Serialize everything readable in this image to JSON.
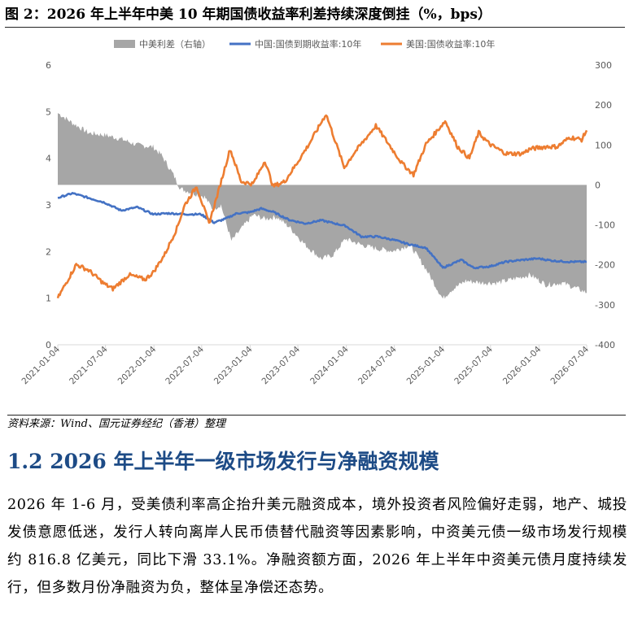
{
  "figure": {
    "title": "图 2：2026 年上半年中美 10 年期国债收益率利差持续深度倒挂（%，bps）",
    "source": "资料来源：Wind、国元证券经纪（香港）整理"
  },
  "section": {
    "heading": "1.2 2026 年上半年一级市场发行与净融资规模",
    "paragraph": "2026 年 1-6 月，受美债利率高企抬升美元融资成本，境外投资者风险偏好走弱，地产、城投发债意愿低迷，发行人转向离岸人民币债替代融资等因素影响，中资美元债一级市场发行规模约 816.8 亿美元，同比下滑 33.1%。净融资额方面，2026 年上半年中资美元债月度持续发行，但多数月份净融资为负，整体呈净偿还态势。"
  },
  "colors": {
    "spread": "#a6a6a6",
    "china": "#4472c4",
    "us": "#ed7d31",
    "axis": "#d9d9d9",
    "tick_text": "#595959"
  },
  "chart_data": {
    "type": "line",
    "x_ticks": [
      "2021-01-04",
      "2021-07-04",
      "2022-01-04",
      "2022-07-04",
      "2023-01-04",
      "2023-07-04",
      "2024-01-04",
      "2024-07-04",
      "2025-01-04",
      "2025-07-04",
      "2026-01-04",
      "2026-07-04"
    ],
    "y_left": {
      "ticks": [
        "0",
        "1",
        "2",
        "3",
        "4",
        "5",
        "6"
      ],
      "range": [
        0,
        6
      ]
    },
    "y_right": {
      "ticks": [
        "-400",
        "-300",
        "-200",
        "-100",
        "0",
        "100",
        "200",
        "300"
      ],
      "range": [
        -400,
        300
      ]
    },
    "legend_position": "top",
    "series": [
      {
        "name": "中美利差（右轴）",
        "kind": "area",
        "axis": "right",
        "points": [
          [
            "2021-01-04",
            180
          ],
          [
            "2021-03-01",
            155
          ],
          [
            "2021-05-01",
            130
          ],
          [
            "2021-07-01",
            125
          ],
          [
            "2021-09-01",
            115
          ],
          [
            "2021-11-01",
            100
          ],
          [
            "2022-01-01",
            95
          ],
          [
            "2022-02-01",
            75
          ],
          [
            "2022-03-15",
            30
          ],
          [
            "2022-04-15",
            -10
          ],
          [
            "2022-06-01",
            -20
          ],
          [
            "2022-07-15",
            -30
          ],
          [
            "2022-08-15",
            -60
          ],
          [
            "2022-09-15",
            -50
          ],
          [
            "2022-10-25",
            -140
          ],
          [
            "2022-12-01",
            -110
          ],
          [
            "2023-01-15",
            -75
          ],
          [
            "2023-03-01",
            -85
          ],
          [
            "2023-04-15",
            -80
          ],
          [
            "2023-06-01",
            -105
          ],
          [
            "2023-08-01",
            -150
          ],
          [
            "2023-10-01",
            -185
          ],
          [
            "2023-11-15",
            -175
          ],
          [
            "2024-01-01",
            -135
          ],
          [
            "2024-03-01",
            -150
          ],
          [
            "2024-05-01",
            -160
          ],
          [
            "2024-07-01",
            -165
          ],
          [
            "2024-09-01",
            -150
          ],
          [
            "2024-11-01",
            -210
          ],
          [
            "2025-01-04",
            -285
          ],
          [
            "2025-02-01",
            -265
          ],
          [
            "2025-04-01",
            -240
          ],
          [
            "2025-06-01",
            -245
          ],
          [
            "2025-08-01",
            -245
          ],
          [
            "2025-10-01",
            -235
          ],
          [
            "2025-12-01",
            -225
          ],
          [
            "2026-02-01",
            -250
          ],
          [
            "2026-04-01",
            -245
          ],
          [
            "2026-06-01",
            -260
          ],
          [
            "2026-07-04",
            -270
          ]
        ]
      },
      {
        "name": "中国:国债到期收益率:10年",
        "kind": "line",
        "axis": "left",
        "points": [
          [
            "2021-01-04",
            3.15
          ],
          [
            "2021-03-01",
            3.25
          ],
          [
            "2021-05-01",
            3.15
          ],
          [
            "2021-07-01",
            3.05
          ],
          [
            "2021-09-01",
            2.88
          ],
          [
            "2021-11-01",
            2.95
          ],
          [
            "2022-01-01",
            2.8
          ],
          [
            "2022-03-01",
            2.82
          ],
          [
            "2022-05-01",
            2.8
          ],
          [
            "2022-07-01",
            2.8
          ],
          [
            "2022-08-20",
            2.62
          ],
          [
            "2022-10-01",
            2.7
          ],
          [
            "2022-11-15",
            2.82
          ],
          [
            "2023-01-01",
            2.84
          ],
          [
            "2023-02-15",
            2.92
          ],
          [
            "2023-04-01",
            2.85
          ],
          [
            "2023-06-01",
            2.68
          ],
          [
            "2023-08-01",
            2.6
          ],
          [
            "2023-10-01",
            2.67
          ],
          [
            "2024-01-01",
            2.55
          ],
          [
            "2024-03-01",
            2.32
          ],
          [
            "2024-05-01",
            2.32
          ],
          [
            "2024-07-01",
            2.25
          ],
          [
            "2024-09-01",
            2.15
          ],
          [
            "2024-11-01",
            2.08
          ],
          [
            "2025-01-04",
            1.65
          ],
          [
            "2025-03-15",
            1.82
          ],
          [
            "2025-05-01",
            1.65
          ],
          [
            "2025-07-01",
            1.68
          ],
          [
            "2025-09-01",
            1.78
          ],
          [
            "2025-11-01",
            1.82
          ],
          [
            "2026-01-01",
            1.85
          ],
          [
            "2026-03-01",
            1.8
          ],
          [
            "2026-05-01",
            1.78
          ],
          [
            "2026-07-04",
            1.78
          ]
        ]
      },
      {
        "name": "美国:国债收益率:10年",
        "kind": "line",
        "axis": "left",
        "points": [
          [
            "2021-01-04",
            1.0
          ],
          [
            "2021-03-15",
            1.72
          ],
          [
            "2021-05-01",
            1.6
          ],
          [
            "2021-07-01",
            1.3
          ],
          [
            "2021-08-01",
            1.2
          ],
          [
            "2021-10-01",
            1.5
          ],
          [
            "2021-12-01",
            1.4
          ],
          [
            "2022-01-01",
            1.55
          ],
          [
            "2022-02-15",
            1.95
          ],
          [
            "2022-04-01",
            2.5
          ],
          [
            "2022-05-01",
            3.0
          ],
          [
            "2022-06-15",
            3.4
          ],
          [
            "2022-08-01",
            2.6
          ],
          [
            "2022-09-01",
            3.2
          ],
          [
            "2022-10-20",
            4.2
          ],
          [
            "2022-12-01",
            3.5
          ],
          [
            "2023-01-15",
            3.45
          ],
          [
            "2023-03-01",
            3.95
          ],
          [
            "2023-04-01",
            3.4
          ],
          [
            "2023-05-15",
            3.5
          ],
          [
            "2023-07-01",
            3.9
          ],
          [
            "2023-08-15",
            4.3
          ],
          [
            "2023-10-19",
            4.95
          ],
          [
            "2023-12-27",
            3.8
          ],
          [
            "2024-02-01",
            4.1
          ],
          [
            "2024-04-25",
            4.7
          ],
          [
            "2024-06-01",
            4.4
          ],
          [
            "2024-08-01",
            3.9
          ],
          [
            "2024-09-15",
            3.65
          ],
          [
            "2024-11-01",
            4.3
          ],
          [
            "2025-01-13",
            4.8
          ],
          [
            "2025-03-01",
            4.25
          ],
          [
            "2025-04-15",
            4.0
          ],
          [
            "2025-05-20",
            4.55
          ],
          [
            "2025-07-01",
            4.3
          ],
          [
            "2025-09-01",
            4.1
          ],
          [
            "2025-11-01",
            4.1
          ],
          [
            "2025-12-01",
            4.2
          ],
          [
            "2026-02-01",
            4.25
          ],
          [
            "2026-03-15",
            4.25
          ],
          [
            "2026-05-01",
            4.45
          ],
          [
            "2026-06-15",
            4.4
          ],
          [
            "2026-07-04",
            4.6
          ]
        ]
      }
    ]
  }
}
